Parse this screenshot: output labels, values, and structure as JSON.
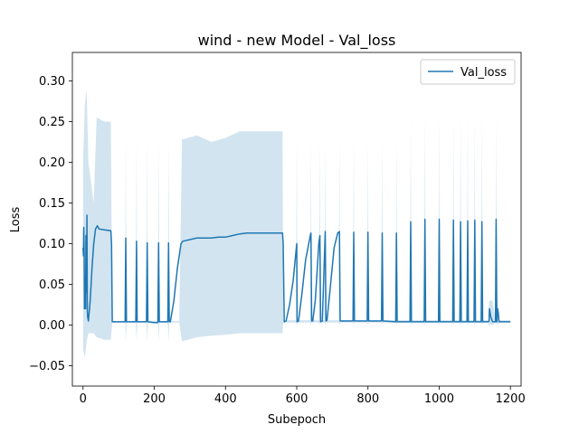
{
  "chart_data": {
    "type": "line",
    "title": "wind - new Model - Val_loss",
    "xlabel": "Subepoch",
    "ylabel": "Loss",
    "xlim": [
      -30,
      1230
    ],
    "ylim": [
      -0.075,
      0.335
    ],
    "x_ticks": [
      0,
      200,
      400,
      600,
      800,
      1000,
      1200
    ],
    "x_tick_labels": [
      "0",
      "200",
      "400",
      "600",
      "800",
      "1000",
      "1200"
    ],
    "y_ticks": [
      -0.05,
      0.0,
      0.05,
      0.1,
      0.15,
      0.2,
      0.25,
      0.3
    ],
    "y_tick_labels": [
      "−0.05",
      "0.00",
      "0.05",
      "0.10",
      "0.15",
      "0.20",
      "0.25",
      "0.30"
    ],
    "grid": false,
    "legend_position": "top-right",
    "series": [
      {
        "name": "Val_loss",
        "color": "#1f77b4",
        "band_color": "#1f77b4",
        "band_opacity": 0.2,
        "points": [
          [
            0,
            0.095
          ],
          [
            1,
            0.085
          ],
          [
            2,
            0.12
          ],
          [
            3,
            0.09
          ],
          [
            4,
            0.02
          ],
          [
            5,
            0.06
          ],
          [
            6,
            0.03
          ],
          [
            7,
            0.02
          ],
          [
            8,
            0.11
          ],
          [
            9,
            0.05
          ],
          [
            10,
            0.04
          ],
          [
            11,
            0.135
          ],
          [
            12,
            0.02
          ],
          [
            13,
            0.01
          ],
          [
            15,
            0.005
          ],
          [
            20,
            0.03
          ],
          [
            25,
            0.07
          ],
          [
            30,
            0.1
          ],
          [
            35,
            0.118
          ],
          [
            40,
            0.122
          ],
          [
            45,
            0.118
          ],
          [
            60,
            0.117
          ],
          [
            78,
            0.116
          ],
          [
            80,
            0.1
          ],
          [
            82,
            0.004
          ],
          [
            118,
            0.004
          ],
          [
            120,
            0.107
          ],
          [
            122,
            0.004
          ],
          [
            148,
            0.004
          ],
          [
            150,
            0.103
          ],
          [
            152,
            0.004
          ],
          [
            158,
            0.004
          ],
          [
            178,
            0.004
          ],
          [
            180,
            0.101
          ],
          [
            182,
            0.004
          ],
          [
            198,
            0.003
          ],
          [
            210,
            0.003
          ],
          [
            212,
            0.101
          ],
          [
            214,
            0.004
          ],
          [
            238,
            0.004
          ],
          [
            240,
            0.101
          ],
          [
            242,
            0.004
          ],
          [
            245,
            0.004
          ],
          [
            255,
            0.03
          ],
          [
            265,
            0.07
          ],
          [
            275,
            0.1
          ],
          [
            280,
            0.103
          ],
          [
            300,
            0.105
          ],
          [
            320,
            0.107
          ],
          [
            360,
            0.107
          ],
          [
            380,
            0.108
          ],
          [
            400,
            0.108
          ],
          [
            420,
            0.11
          ],
          [
            440,
            0.112
          ],
          [
            460,
            0.113
          ],
          [
            480,
            0.113
          ],
          [
            500,
            0.113
          ],
          [
            520,
            0.113
          ],
          [
            540,
            0.113
          ],
          [
            560,
            0.113
          ],
          [
            562,
            0.1
          ],
          [
            565,
            0.004
          ],
          [
            570,
            0.005
          ],
          [
            580,
            0.025
          ],
          [
            590,
            0.055
          ],
          [
            600,
            0.1
          ],
          [
            601,
            0.004
          ],
          [
            605,
            0.005
          ],
          [
            615,
            0.04
          ],
          [
            625,
            0.08
          ],
          [
            638,
            0.11
          ],
          [
            640,
            0.113
          ],
          [
            642,
            0.005
          ],
          [
            645,
            0.005
          ],
          [
            652,
            0.03
          ],
          [
            662,
            0.1
          ],
          [
            665,
            0.11
          ],
          [
            667,
            0.004
          ],
          [
            672,
            0.005
          ],
          [
            680,
            0.115
          ],
          [
            682,
            0.005
          ],
          [
            685,
            0.006
          ],
          [
            695,
            0.05
          ],
          [
            705,
            0.095
          ],
          [
            715,
            0.113
          ],
          [
            720,
            0.115
          ],
          [
            722,
            0.005
          ],
          [
            758,
            0.005
          ],
          [
            760,
            0.114
          ],
          [
            762,
            0.005
          ],
          [
            798,
            0.005
          ],
          [
            800,
            0.114
          ],
          [
            802,
            0.005
          ],
          [
            838,
            0.005
          ],
          [
            840,
            0.113
          ],
          [
            842,
            0.005
          ],
          [
            878,
            0.004
          ],
          [
            880,
            0.113
          ],
          [
            882,
            0.004
          ],
          [
            918,
            0.004
          ],
          [
            920,
            0.127
          ],
          [
            922,
            0.004
          ],
          [
            958,
            0.004
          ],
          [
            960,
            0.13
          ],
          [
            962,
            0.004
          ],
          [
            998,
            0.004
          ],
          [
            1000,
            0.13
          ],
          [
            1002,
            0.004
          ],
          [
            1038,
            0.004
          ],
          [
            1040,
            0.129
          ],
          [
            1042,
            0.004
          ],
          [
            1058,
            0.004
          ],
          [
            1060,
            0.127
          ],
          [
            1062,
            0.004
          ],
          [
            1078,
            0.004
          ],
          [
            1080,
            0.128
          ],
          [
            1082,
            0.004
          ],
          [
            1098,
            0.004
          ],
          [
            1100,
            0.129
          ],
          [
            1102,
            0.004
          ],
          [
            1118,
            0.004
          ],
          [
            1120,
            0.127
          ],
          [
            1122,
            0.004
          ],
          [
            1138,
            0.004
          ],
          [
            1140,
            0.005
          ],
          [
            1141,
            0.02
          ],
          [
            1145,
            0.01
          ],
          [
            1150,
            0.004
          ],
          [
            1155,
            0.004
          ],
          [
            1158,
            0.004
          ],
          [
            1160,
            0.13
          ],
          [
            1162,
            0.004
          ],
          [
            1164,
            0.02
          ],
          [
            1166,
            0.015
          ],
          [
            1168,
            0.004
          ],
          [
            1200,
            0.004
          ]
        ],
        "bands": [
          [
            0,
            -0.03,
            0.2
          ],
          [
            5,
            -0.04,
            0.27
          ],
          [
            10,
            -0.02,
            0.29
          ],
          [
            15,
            -0.01,
            0.2
          ],
          [
            30,
            -0.01,
            0.15
          ],
          [
            38,
            -0.015,
            0.255
          ],
          [
            60,
            -0.018,
            0.25
          ],
          [
            78,
            -0.018,
            0.25
          ],
          [
            82,
            0.003,
            0.005
          ],
          [
            118,
            0.003,
            0.005
          ],
          [
            120,
            -0.02,
            0.23
          ],
          [
            122,
            0.003,
            0.005
          ],
          [
            148,
            0.003,
            0.005
          ],
          [
            150,
            -0.02,
            0.228
          ],
          [
            152,
            0.003,
            0.005
          ],
          [
            178,
            0.003,
            0.005
          ],
          [
            180,
            -0.02,
            0.228
          ],
          [
            182,
            0.003,
            0.005
          ],
          [
            210,
            0.003,
            0.005
          ],
          [
            212,
            -0.02,
            0.228
          ],
          [
            214,
            0.003,
            0.005
          ],
          [
            238,
            0.003,
            0.005
          ],
          [
            240,
            -0.02,
            0.228
          ],
          [
            242,
            0.003,
            0.005
          ],
          [
            270,
            0.003,
            0.005
          ],
          [
            278,
            -0.02,
            0.228
          ],
          [
            320,
            -0.015,
            0.233
          ],
          [
            360,
            -0.013,
            0.225
          ],
          [
            400,
            -0.012,
            0.23
          ],
          [
            440,
            -0.01,
            0.238
          ],
          [
            520,
            -0.01,
            0.238
          ],
          [
            560,
            -0.01,
            0.238
          ],
          [
            562,
            0.003,
            0.006
          ],
          [
            598,
            0.003,
            0.006
          ],
          [
            600,
            0.0,
            0.23
          ],
          [
            602,
            0.003,
            0.006
          ],
          [
            638,
            0.003,
            0.006
          ],
          [
            640,
            0.0,
            0.23
          ],
          [
            642,
            0.003,
            0.006
          ],
          [
            663,
            0.003,
            0.006
          ],
          [
            665,
            0.0,
            0.23
          ],
          [
            667,
            0.003,
            0.006
          ],
          [
            678,
            0.003,
            0.006
          ],
          [
            680,
            0.0,
            0.23
          ],
          [
            682,
            0.003,
            0.006
          ],
          [
            718,
            0.003,
            0.006
          ],
          [
            720,
            0.0,
            0.23
          ],
          [
            722,
            0.003,
            0.006
          ],
          [
            758,
            0.003,
            0.006
          ],
          [
            760,
            0.0,
            0.23
          ],
          [
            762,
            0.003,
            0.006
          ],
          [
            798,
            0.003,
            0.006
          ],
          [
            800,
            0.0,
            0.23
          ],
          [
            802,
            0.003,
            0.006
          ],
          [
            838,
            0.003,
            0.006
          ],
          [
            840,
            0.0,
            0.23
          ],
          [
            842,
            0.003,
            0.006
          ],
          [
            878,
            0.003,
            0.006
          ],
          [
            880,
            0.0,
            0.23
          ],
          [
            882,
            0.003,
            0.006
          ],
          [
            918,
            0.003,
            0.006
          ],
          [
            920,
            0.0,
            0.258
          ],
          [
            922,
            0.003,
            0.006
          ],
          [
            958,
            0.003,
            0.006
          ],
          [
            960,
            0.0,
            0.26
          ],
          [
            962,
            0.003,
            0.006
          ],
          [
            998,
            0.003,
            0.006
          ],
          [
            1000,
            0.0,
            0.26
          ],
          [
            1002,
            0.003,
            0.006
          ],
          [
            1038,
            0.003,
            0.006
          ],
          [
            1040,
            0.0,
            0.258
          ],
          [
            1042,
            0.003,
            0.006
          ],
          [
            1058,
            0.003,
            0.006
          ],
          [
            1060,
            0.0,
            0.258
          ],
          [
            1062,
            0.003,
            0.006
          ],
          [
            1078,
            0.003,
            0.006
          ],
          [
            1080,
            0.0,
            0.258
          ],
          [
            1082,
            0.003,
            0.006
          ],
          [
            1098,
            0.003,
            0.006
          ],
          [
            1100,
            0.0,
            0.258
          ],
          [
            1102,
            0.003,
            0.006
          ],
          [
            1118,
            0.003,
            0.006
          ],
          [
            1120,
            0.0,
            0.258
          ],
          [
            1122,
            0.003,
            0.006
          ],
          [
            1138,
            0.003,
            0.006
          ],
          [
            1140,
            0.0,
            0.03
          ],
          [
            1150,
            0.0,
            0.03
          ],
          [
            1158,
            0.003,
            0.006
          ],
          [
            1160,
            0.0,
            0.258
          ],
          [
            1162,
            0.003,
            0.006
          ],
          [
            1164,
            0.0,
            0.03
          ],
          [
            1168,
            0.003,
            0.006
          ],
          [
            1200,
            0.003,
            0.006
          ]
        ]
      }
    ]
  }
}
